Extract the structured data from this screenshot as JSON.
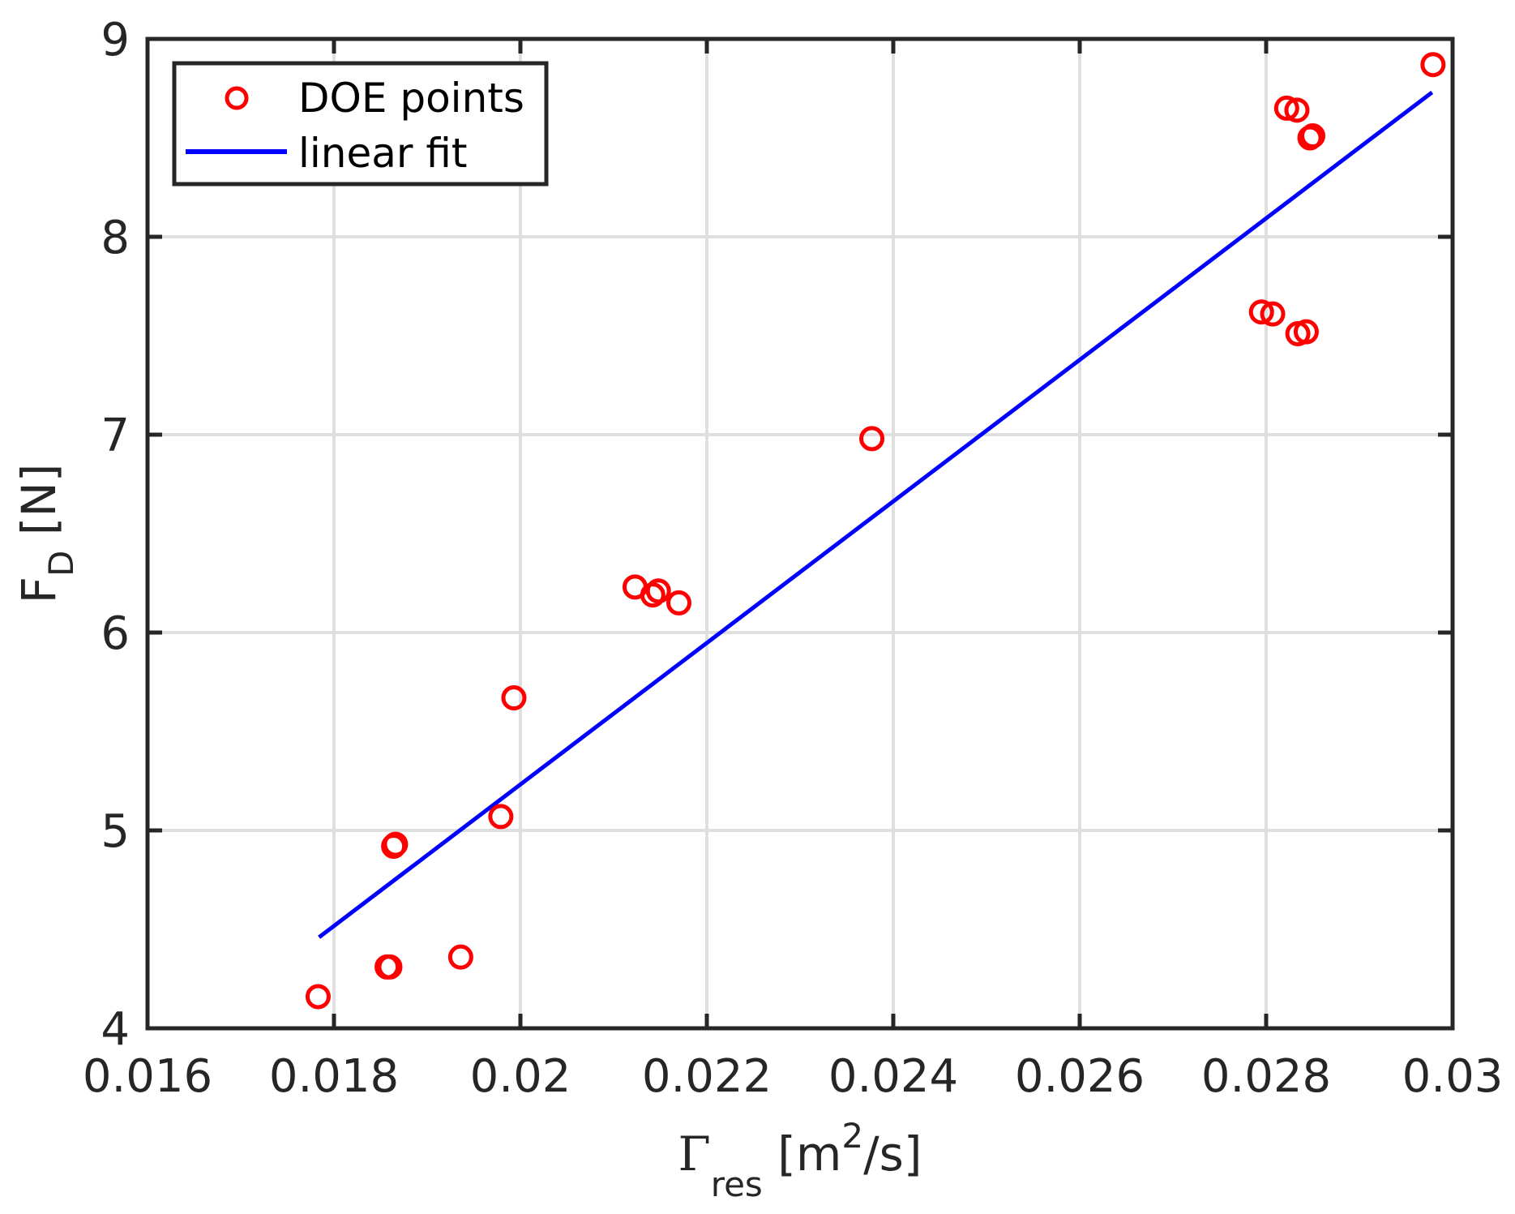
{
  "chart_data": {
    "type": "scatter",
    "title": "",
    "xlabel": "Γres [m²/s]",
    "xlabel_parts": {
      "symbol": "Γ",
      "subscript": "res",
      "unit_open": " [m",
      "superscript": "2",
      "unit_close": "/s]"
    },
    "ylabel": "FD [N]",
    "ylabel_parts": {
      "symbol": "F",
      "subscript": "D",
      "unit": " [N]"
    },
    "xlim": [
      0.016,
      0.03
    ],
    "ylim": [
      4,
      9
    ],
    "xticks": [
      0.016,
      0.018,
      0.02,
      0.022,
      0.024,
      0.026,
      0.028,
      0.03
    ],
    "xtick_labels": [
      "0.016",
      "0.018",
      "0.02",
      "0.022",
      "0.024",
      "0.026",
      "0.028",
      "0.03"
    ],
    "yticks": [
      4,
      5,
      6,
      7,
      8,
      9
    ],
    "ytick_labels": [
      "4",
      "5",
      "6",
      "7",
      "8",
      "9"
    ],
    "grid": true,
    "legend_position": "upper left",
    "series": [
      {
        "name": "DOE points",
        "type": "scatter",
        "marker": "open-circle",
        "color": "#ff0000",
        "x": [
          0.01783,
          0.01857,
          0.0186,
          0.01864,
          0.01866,
          0.01936,
          0.01979,
          0.01993,
          0.02123,
          0.02142,
          0.02148,
          0.0217,
          0.02377,
          0.02795,
          0.02807,
          0.02822,
          0.02833,
          0.02834,
          0.02843,
          0.02847,
          0.0285,
          0.02979
        ],
        "y": [
          4.16,
          4.31,
          4.31,
          4.92,
          4.93,
          4.36,
          5.07,
          5.67,
          6.23,
          6.19,
          6.21,
          6.15,
          6.98,
          7.62,
          7.61,
          8.65,
          8.64,
          7.51,
          7.52,
          8.5,
          8.51,
          8.87
        ]
      },
      {
        "name": "linear fit",
        "type": "line",
        "color": "#0000ff",
        "x": [
          0.01784,
          0.02978
        ],
        "y": [
          4.46,
          8.73
        ]
      }
    ]
  },
  "legend": {
    "items": [
      {
        "label": "DOE points",
        "marker": "open-circle",
        "color": "#ff0000"
      },
      {
        "label": "linear fit",
        "marker": "line",
        "color": "#0000ff"
      }
    ]
  }
}
